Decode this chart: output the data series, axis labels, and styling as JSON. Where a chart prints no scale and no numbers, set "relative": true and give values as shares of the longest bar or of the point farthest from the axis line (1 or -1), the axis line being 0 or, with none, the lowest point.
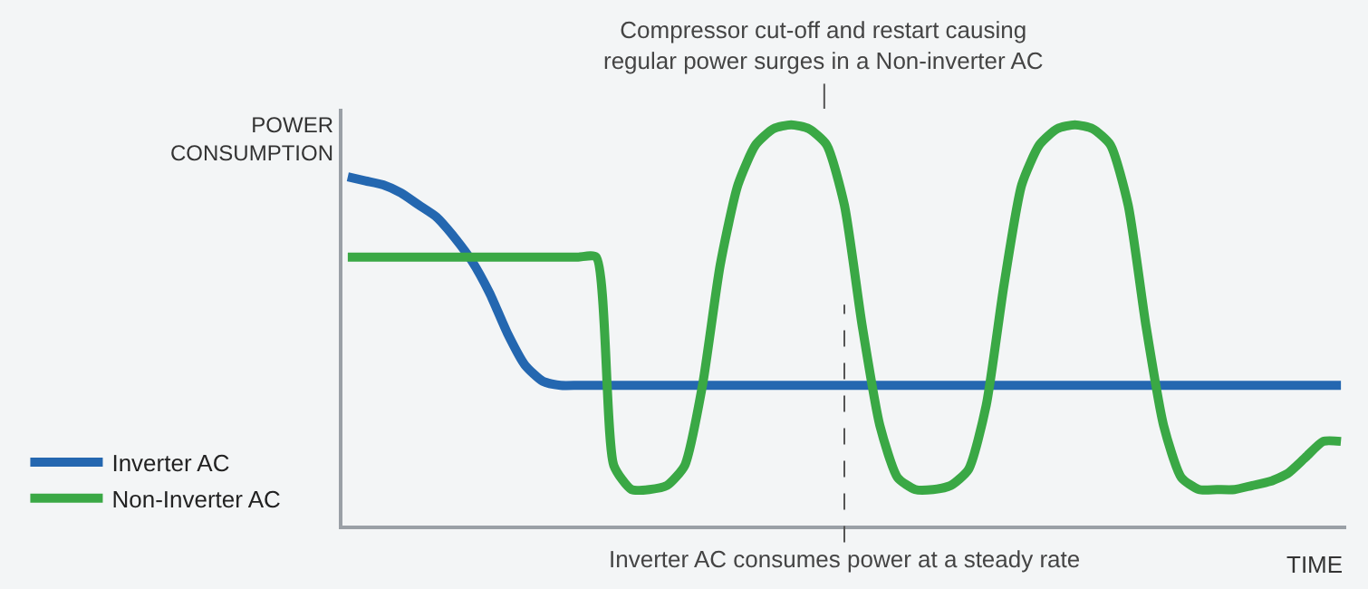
{
  "chart_data": {
    "type": "line",
    "relative": true,
    "xlabel": "TIME",
    "ylabel": "POWER\nCONSUMPTION",
    "categories": [
      null,
      null,
      null,
      null,
      null,
      null,
      null,
      null,
      null,
      null,
      null,
      null,
      null,
      null,
      null,
      null,
      null,
      null,
      null,
      null,
      null,
      null,
      null,
      null,
      null,
      null,
      null,
      null,
      null,
      null,
      null,
      null,
      null,
      null,
      null,
      null,
      null,
      null,
      null,
      null,
      null,
      null,
      null,
      null,
      null,
      null,
      null,
      null,
      null,
      null,
      null,
      null,
      null,
      null,
      null,
      null,
      null
    ],
    "series": [
      {
        "name": "Inverter AC",
        "color": "#2467b0",
        "values": [
          0.87,
          0.86,
          0.85,
          0.83,
          0.8,
          0.77,
          0.72,
          0.66,
          0.58,
          0.48,
          0.4,
          0.36,
          0.35,
          0.35,
          0.35,
          0.35,
          0.35,
          0.35,
          0.35,
          0.35,
          0.35,
          0.35,
          0.35,
          0.35,
          0.35,
          0.35,
          0.35,
          0.35,
          0.35,
          0.35,
          0.35,
          0.35,
          0.35,
          0.35,
          0.35,
          0.35,
          0.35,
          0.35,
          0.35,
          0.35,
          0.35,
          0.35,
          0.35,
          0.35,
          0.35,
          0.35,
          0.35,
          0.35,
          0.35,
          0.35,
          0.35,
          0.35,
          0.35,
          0.35,
          0.35,
          0.35,
          0.35
        ]
      },
      {
        "name": "Non-Inverter AC",
        "color": "#3aa845",
        "values": [
          0.67,
          0.67,
          0.67,
          0.67,
          0.67,
          0.67,
          0.67,
          0.67,
          0.67,
          0.67,
          0.67,
          0.67,
          0.67,
          0.67,
          0.67,
          0.15,
          0.09,
          0.09,
          0.1,
          0.15,
          0.35,
          0.65,
          0.85,
          0.95,
          0.99,
          1.0,
          0.99,
          0.95,
          0.8,
          0.5,
          0.25,
          0.12,
          0.09,
          0.09,
          0.1,
          0.14,
          0.3,
          0.6,
          0.85,
          0.95,
          0.99,
          1.0,
          0.99,
          0.95,
          0.8,
          0.5,
          0.25,
          0.12,
          0.09,
          0.09,
          0.09,
          0.1,
          0.11,
          0.13,
          0.17,
          0.21,
          0.21
        ]
      }
    ],
    "annotations": [
      "Compressor cut-off and restart causing\nregular power surges in a Non-inverter AC",
      "Inverter AC consumes power at a steady rate"
    ],
    "legend": "bottom left",
    "grid": false,
    "tick_labels": false
  }
}
